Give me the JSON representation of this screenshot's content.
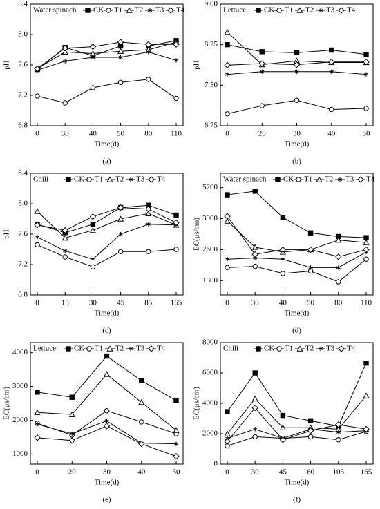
{
  "chart_data": [
    {
      "type": "line",
      "label": "(a)",
      "annotation": "Water spinach",
      "x_label": "Time(d)",
      "y_label": "pH",
      "categories": [
        "0",
        "30",
        "40",
        "50",
        "80",
        "110"
      ],
      "ylim": [
        6.8,
        8.4
      ],
      "yticks": [
        6.8,
        7.2,
        7.6,
        {
          "value": 8.0,
          "label": "8.0"
        },
        8.4
      ],
      "series": [
        {
          "name": "CK",
          "color": "#000000",
          "marker": "square",
          "values": [
            7.54,
            7.83,
            7.72,
            7.85,
            7.85,
            7.92
          ]
        },
        {
          "name": "T1",
          "color": "#000000",
          "marker": "circle",
          "values": [
            7.19,
            7.1,
            7.3,
            7.37,
            7.41,
            7.16
          ]
        },
        {
          "name": "T2",
          "color": "#000000",
          "marker": "triangle",
          "values": [
            7.55,
            7.77,
            7.75,
            7.78,
            7.8,
            7.9
          ]
        },
        {
          "name": "T3",
          "color": "#000000",
          "marker": "star",
          "values": [
            7.53,
            7.65,
            7.7,
            7.7,
            7.77,
            7.66
          ]
        },
        {
          "name": "T4",
          "color": "#000000",
          "marker": "diamond",
          "values": [
            7.55,
            7.82,
            7.84,
            7.9,
            7.87,
            7.87
          ]
        }
      ]
    },
    {
      "type": "line",
      "label": "(b)",
      "annotation": "Lettuce",
      "x_label": "Time(d)",
      "y_label": "pH",
      "categories": [
        "0",
        "20",
        "30",
        "40",
        "50"
      ],
      "ylim": [
        6.75,
        9.0
      ],
      "yticks": [
        6.75,
        {
          "value": 7.5,
          "label": "7.50"
        },
        8.25,
        {
          "value": 9.0,
          "label": "9.00"
        }
      ],
      "series": [
        {
          "name": "CK",
          "color": "#000000",
          "marker": "square",
          "values": [
            8.25,
            8.12,
            8.1,
            8.15,
            8.07
          ]
        },
        {
          "name": "T1",
          "color": "#000000",
          "marker": "circle",
          "values": [
            6.97,
            7.12,
            7.22,
            7.05,
            7.07
          ]
        },
        {
          "name": "T2",
          "color": "#000000",
          "marker": "triangle",
          "values": [
            8.48,
            7.88,
            7.95,
            7.92,
            7.92
          ]
        },
        {
          "name": "T3",
          "color": "#000000",
          "marker": "star",
          "values": [
            7.7,
            7.75,
            7.75,
            7.75,
            7.7
          ]
        },
        {
          "name": "T4",
          "color": "#000000",
          "marker": "diamond",
          "values": [
            7.87,
            7.9,
            7.88,
            7.93,
            7.93
          ]
        }
      ]
    },
    {
      "type": "line",
      "label": "(c)",
      "annotation": "Chili",
      "x_label": "Time(d)",
      "y_label": "pH",
      "categories": [
        "0",
        "15",
        "30",
        "45",
        "85",
        "165"
      ],
      "ylim": [
        6.8,
        8.4
      ],
      "yticks": [
        6.8,
        7.2,
        7.6,
        {
          "value": 8.0,
          "label": "8.0"
        },
        8.4
      ],
      "series": [
        {
          "name": "CK",
          "color": "#000000",
          "marker": "square",
          "values": [
            7.73,
            7.62,
            7.73,
            7.95,
            7.98,
            7.85
          ]
        },
        {
          "name": "T1",
          "color": "#000000",
          "marker": "circle",
          "values": [
            7.46,
            7.3,
            7.17,
            7.37,
            7.37,
            7.4
          ]
        },
        {
          "name": "T2",
          "color": "#000000",
          "marker": "triangle",
          "values": [
            7.9,
            7.55,
            7.65,
            7.8,
            7.87,
            7.72
          ]
        },
        {
          "name": "T3",
          "color": "#000000",
          "marker": "star",
          "values": [
            7.56,
            7.38,
            7.27,
            7.6,
            7.73,
            7.72
          ]
        },
        {
          "name": "T4",
          "color": "#000000",
          "marker": "diamond",
          "values": [
            7.72,
            7.65,
            7.83,
            7.95,
            7.93,
            7.75
          ]
        }
      ]
    },
    {
      "type": "line",
      "label": "(d)",
      "annotation": "Water spinach",
      "x_label": "Time(d)",
      "y_label": "EC(μs/cm)",
      "categories": [
        "0",
        "30",
        "40",
        "50",
        "80",
        "110"
      ],
      "ylim": [
        700,
        5800
      ],
      "yticks": [
        1300,
        2600,
        3900,
        5200
      ],
      "series": [
        {
          "name": "CK",
          "color": "#000000",
          "marker": "square",
          "values": [
            4900,
            5050,
            3950,
            3300,
            3150,
            3100
          ]
        },
        {
          "name": "T1",
          "color": "#000000",
          "marker": "circle",
          "values": [
            1850,
            1900,
            1600,
            1700,
            1250,
            2200
          ]
        },
        {
          "name": "T2",
          "color": "#000000",
          "marker": "triangle",
          "values": [
            3800,
            2700,
            2500,
            2600,
            3000,
            2900
          ]
        },
        {
          "name": "T3",
          "color": "#000000",
          "marker": "star",
          "values": [
            2200,
            2250,
            2200,
            1850,
            1850,
            2500
          ]
        },
        {
          "name": "T4",
          "color": "#000000",
          "marker": "diamond",
          "values": [
            4000,
            2400,
            2600,
            2600,
            2300,
            2600
          ]
        }
      ]
    },
    {
      "type": "line",
      "label": "(e)",
      "annotation": "Lettuce",
      "x_label": "Time(d)",
      "y_label": "EC(μs/cm)",
      "categories": [
        "0",
        "20",
        "30",
        "40",
        "50"
      ],
      "ylim": [
        700,
        4300
      ],
      "yticks": [
        1000,
        2000,
        3000,
        4000
      ],
      "series": [
        {
          "name": "CK",
          "color": "#000000",
          "marker": "square",
          "values": [
            2830,
            2680,
            3900,
            3170,
            2580
          ]
        },
        {
          "name": "T1",
          "color": "#000000",
          "marker": "circle",
          "values": [
            1910,
            1560,
            2280,
            1950,
            1600
          ]
        },
        {
          "name": "T2",
          "color": "#000000",
          "marker": "triangle",
          "values": [
            2230,
            2170,
            3360,
            2530,
            1700
          ]
        },
        {
          "name": "T3",
          "color": "#000000",
          "marker": "star",
          "values": [
            1880,
            1600,
            1980,
            1320,
            1300
          ]
        },
        {
          "name": "T4",
          "color": "#000000",
          "marker": "diamond",
          "values": [
            1480,
            1400,
            1830,
            1300,
            930
          ]
        }
      ]
    },
    {
      "type": "line",
      "label": "(f)",
      "annotation": "Chili",
      "x_label": "Time(d)",
      "y_label": "EC(μs/cm)",
      "categories": [
        "0",
        "30",
        "45",
        "60",
        "105",
        "165"
      ],
      "ylim": [
        0,
        8000
      ],
      "yticks": [
        0,
        2000,
        4000,
        6000,
        8000
      ],
      "series": [
        {
          "name": "CK",
          "color": "#000000",
          "marker": "square",
          "values": [
            3450,
            6000,
            3200,
            2850,
            2500,
            6650
          ]
        },
        {
          "name": "T1",
          "color": "#000000",
          "marker": "circle",
          "values": [
            1200,
            1800,
            1700,
            1800,
            1600,
            2150
          ]
        },
        {
          "name": "T2",
          "color": "#000000",
          "marker": "triangle",
          "values": [
            2000,
            4300,
            2400,
            2400,
            2300,
            4500
          ]
        },
        {
          "name": "T3",
          "color": "#000000",
          "marker": "star",
          "values": [
            1700,
            2300,
            1700,
            2300,
            2100,
            2200
          ]
        },
        {
          "name": "T4",
          "color": "#000000",
          "marker": "diamond",
          "values": [
            1500,
            3700,
            1600,
            2200,
            2600,
            2300
          ]
        }
      ]
    }
  ]
}
